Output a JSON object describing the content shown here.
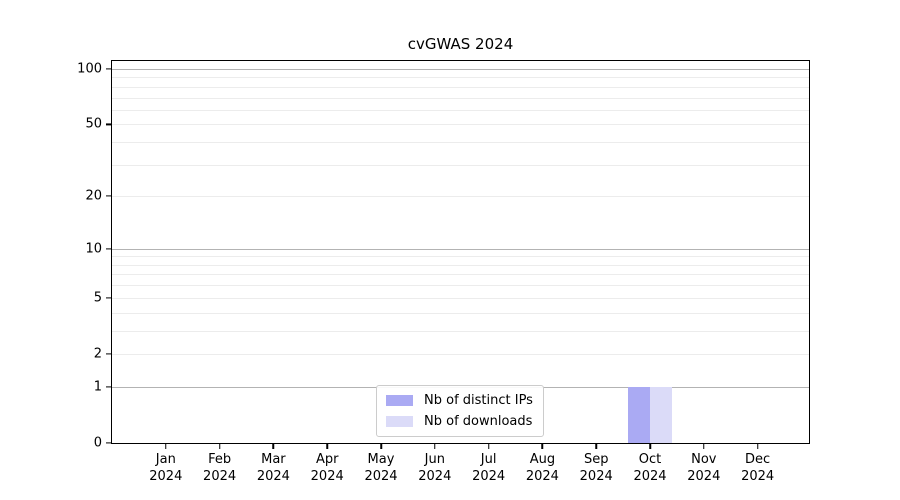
{
  "title": "cvGWAS 2024",
  "chart_data": {
    "type": "bar",
    "title": "cvGWAS 2024",
    "x_months": [
      "Jan",
      "Feb",
      "Mar",
      "Apr",
      "May",
      "Jun",
      "Jul",
      "Aug",
      "Sep",
      "Oct",
      "Nov",
      "Dec"
    ],
    "x_year": "2024",
    "categories": [
      "Jan 2024",
      "Feb 2024",
      "Mar 2024",
      "Apr 2024",
      "May 2024",
      "Jun 2024",
      "Jul 2024",
      "Aug 2024",
      "Sep 2024",
      "Oct 2024",
      "Nov 2024",
      "Dec 2024"
    ],
    "series": [
      {
        "name": "Nb of distinct IPs",
        "color": "#aaaaf3",
        "values": [
          0,
          0,
          0,
          0,
          0,
          0,
          0,
          0,
          0,
          1,
          0,
          0
        ]
      },
      {
        "name": "Nb of downloads",
        "color": "#dbdbf8",
        "values": [
          0,
          0,
          0,
          0,
          0,
          0,
          0,
          0,
          0,
          1,
          0,
          0
        ]
      }
    ],
    "yscale": "log1p",
    "ylim": [
      0,
      110
    ],
    "ytick_values": [
      0,
      1,
      2,
      5,
      10,
      20,
      50,
      100
    ],
    "ytick_labels": [
      "0",
      "1",
      "2",
      "5",
      "10",
      "20",
      "50",
      "100"
    ],
    "major_grid_values": [
      1,
      10,
      100
    ],
    "minor_grid_values": [
      2,
      3,
      4,
      5,
      6,
      7,
      8,
      9,
      20,
      30,
      40,
      50,
      60,
      70,
      80,
      90
    ],
    "grid": true,
    "legend_position": "lower center"
  },
  "colors": {
    "background": "#ffffff",
    "spine": "#000000",
    "text": "#000000",
    "major_grid": "#b3b3b3",
    "minor_grid": "#ececec",
    "bar_distinct_ips": "#aaaaf3",
    "bar_downloads": "#dbdbf8",
    "legend_border": "#cccccc"
  }
}
